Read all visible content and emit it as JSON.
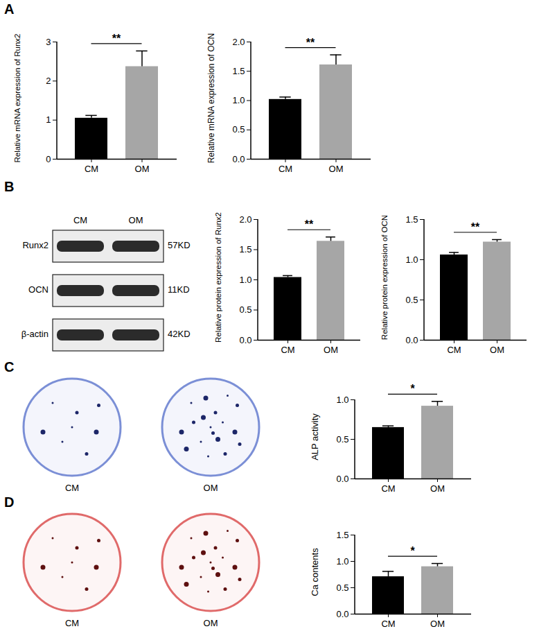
{
  "chart_data": [
    {
      "panel": "A",
      "type": "bar",
      "categories": [
        "CM",
        "OM"
      ],
      "values": [
        1.05,
        2.37
      ],
      "errors": [
        0.07,
        0.4
      ],
      "colors": [
        "#000000",
        "#a6a6a6"
      ],
      "ylabel": "Relative mRNA expression of Runx2",
      "ylim": [
        0,
        3
      ],
      "yticks": [
        0,
        1,
        2,
        3
      ],
      "annotation": "**"
    },
    {
      "panel": "A",
      "type": "bar",
      "categories": [
        "CM",
        "OM"
      ],
      "values": [
        1.02,
        1.61
      ],
      "errors": [
        0.04,
        0.17
      ],
      "colors": [
        "#000000",
        "#a6a6a6"
      ],
      "ylabel": "Relative mRNA expression of OCN",
      "ylim": [
        0,
        2
      ],
      "yticks": [
        {
          "value": 0,
          "label": "0.0"
        },
        {
          "value": 0.5,
          "label": "0.5"
        },
        {
          "value": 1,
          "label": "1.0"
        },
        {
          "value": 1.5,
          "label": "1.5"
        },
        {
          "value": 2,
          "label": "2.0"
        }
      ],
      "annotation": "**"
    },
    {
      "panel": "B",
      "type": "bar",
      "categories": [
        "CM",
        "OM"
      ],
      "values": [
        1.04,
        1.64
      ],
      "errors": [
        0.03,
        0.07
      ],
      "colors": [
        "#000000",
        "#a6a6a6"
      ],
      "ylabel": "Relative protein expression of Runx2",
      "ylim": [
        0,
        2
      ],
      "yticks": [
        {
          "value": 0,
          "label": "0.0"
        },
        {
          "value": 0.5,
          "label": "0.5"
        },
        {
          "value": 1,
          "label": "1.0"
        },
        {
          "value": 1.5,
          "label": "1.5"
        },
        {
          "value": 2,
          "label": "2.0"
        }
      ],
      "annotation": "**"
    },
    {
      "panel": "B",
      "type": "bar",
      "categories": [
        "CM",
        "OM"
      ],
      "values": [
        1.06,
        1.22
      ],
      "errors": [
        0.03,
        0.03
      ],
      "colors": [
        "#000000",
        "#a6a6a6"
      ],
      "ylabel": "Relative protein expression of OCN",
      "ylim": [
        0,
        1.5
      ],
      "yticks": [
        {
          "value": 0,
          "label": "0.0"
        },
        {
          "value": 0.5,
          "label": "0.5"
        },
        {
          "value": 1,
          "label": "1.0"
        },
        {
          "value": 1.5,
          "label": "1.5"
        }
      ],
      "annotation": "**"
    },
    {
      "panel": "C",
      "type": "bar",
      "categories": [
        "CM",
        "OM"
      ],
      "values": [
        0.65,
        0.92
      ],
      "errors": [
        0.02,
        0.06
      ],
      "colors": [
        "#000000",
        "#a6a6a6"
      ],
      "ylabel": "ALP activity",
      "ylim": [
        0,
        1
      ],
      "yticks": [
        {
          "value": 0,
          "label": "0.0"
        },
        {
          "value": 0.5,
          "label": "0.5"
        },
        {
          "value": 1,
          "label": "1.0"
        }
      ],
      "annotation": "*"
    },
    {
      "panel": "D",
      "type": "bar",
      "categories": [
        "CM",
        "OM"
      ],
      "values": [
        0.71,
        0.9
      ],
      "errors": [
        0.1,
        0.06
      ],
      "colors": [
        "#000000",
        "#a6a6a6"
      ],
      "ylabel": "Ca contents",
      "ylim": [
        0,
        1.5
      ],
      "yticks": [
        {
          "value": 0,
          "label": "0.0"
        },
        {
          "value": 0.5,
          "label": "0.5"
        },
        {
          "value": 1,
          "label": "1.0"
        },
        {
          "value": 1.5,
          "label": "1.5"
        }
      ],
      "annotation": "*"
    }
  ],
  "blot": {
    "panel": "B",
    "lanes": [
      "CM",
      "OM"
    ],
    "rows": [
      {
        "protein": "Runx2",
        "size": "57KD"
      },
      {
        "protein": "OCN",
        "size": "11KD"
      },
      {
        "protein": "β-actin",
        "size": "42KD"
      }
    ]
  },
  "stains": [
    {
      "panel": "C",
      "wells": [
        "CM",
        "OM"
      ]
    },
    {
      "panel": "D",
      "wells": [
        "CM",
        "OM"
      ]
    }
  ]
}
